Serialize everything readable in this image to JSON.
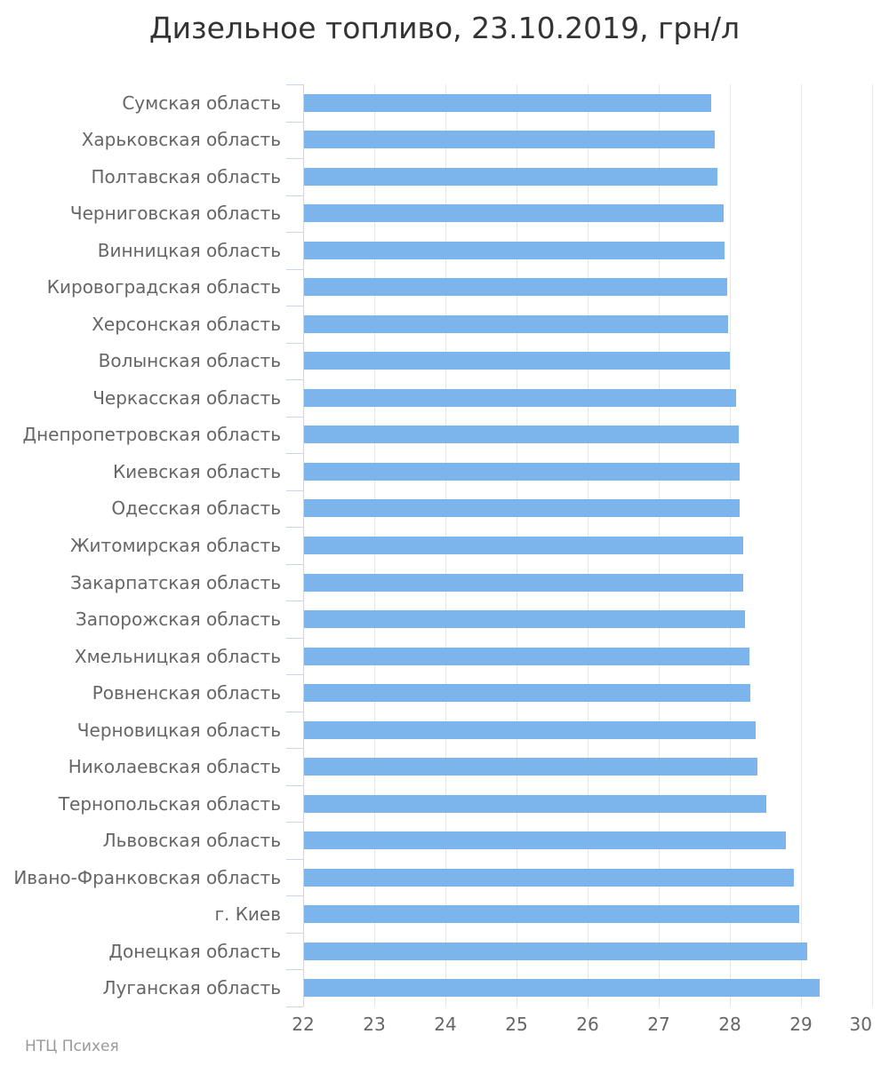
{
  "title": "Дизельное топливо, 23.10.2019, грн/л",
  "footer": "НТЦ Психея",
  "colors": {
    "bar": "#7cb5ec",
    "axis_line": "#ccd6eb",
    "gridline": "#e6e6e6",
    "title_text": "#333333",
    "label_text": "#666666",
    "footer_text": "#999999"
  },
  "chart_data": {
    "type": "bar",
    "orientation": "horizontal",
    "title": "Дизельное топливо, 23.10.2019, грн/л",
    "xlabel": "",
    "ylabel": "",
    "xlim": [
      22,
      30
    ],
    "x_ticks": [
      22,
      23,
      24,
      25,
      26,
      27,
      28,
      29,
      30
    ],
    "grid": true,
    "legend": "none",
    "categories": [
      "Сумская область",
      "Харьковская область",
      "Полтавская область",
      "Черниговская область",
      "Винницкая область",
      "Кировоградская область",
      "Херсонская область",
      "Волынская область",
      "Черкасская область",
      "Днепропетровская область",
      "Киевская область",
      "Одесская область",
      "Житомирская область",
      "Закарпатская область",
      "Запорожская область",
      "Хмельницкая область",
      "Ровненская область",
      "Черновицкая область",
      "Николаевская область",
      "Тернопольская область",
      "Львовская область",
      "Ивано-Франковская область",
      "г. Киев",
      "Донецкая область",
      "Луганская область"
    ],
    "values": [
      27.74,
      27.79,
      27.82,
      27.91,
      27.92,
      27.96,
      27.97,
      28.0,
      28.09,
      28.12,
      28.14,
      28.14,
      28.19,
      28.19,
      28.21,
      28.27,
      28.29,
      28.36,
      28.39,
      28.51,
      28.79,
      28.9,
      28.98,
      29.09,
      29.26
    ],
    "units": "грн/л"
  }
}
